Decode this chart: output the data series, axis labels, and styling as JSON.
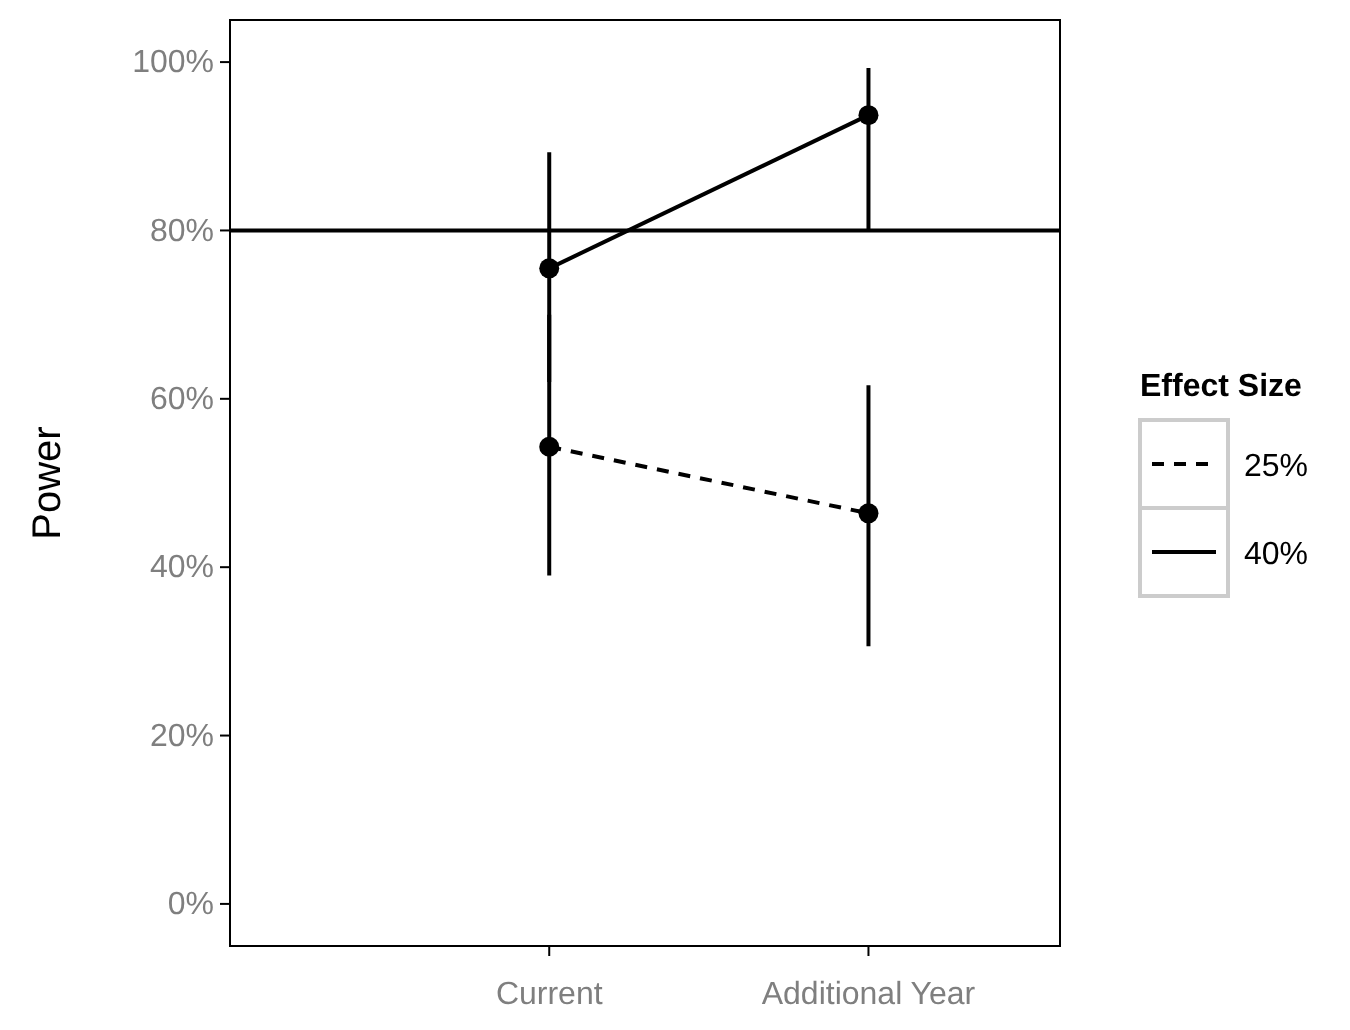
{
  "chart_data": {
    "type": "line",
    "ylabel": "Power",
    "legend_title": "Effect Size",
    "categories": [
      "Current",
      "Additional Year"
    ],
    "series": [
      {
        "name": "25%",
        "color": "#000000",
        "line_style": "dashed",
        "values": [
          54.3,
          46.4
        ],
        "errors": [
          [
            39,
            70
          ],
          [
            30.6,
            61.6
          ]
        ]
      },
      {
        "name": "40%",
        "color": "#000000",
        "line_style": "solid",
        "values": [
          75.5,
          93.7
        ],
        "errors": [
          [
            62,
            89.3
          ],
          [
            80,
            99.3
          ]
        ]
      }
    ],
    "ylim": [
      -5,
      105
    ],
    "yticks": [
      {
        "value": 0,
        "label": "0%"
      },
      {
        "value": 20,
        "label": "20%"
      },
      {
        "value": 40,
        "label": "40%"
      },
      {
        "value": 60,
        "label": "60%"
      },
      {
        "value": 80,
        "label": "80%"
      },
      {
        "value": 100,
        "label": "100%"
      }
    ],
    "ref_lines": [
      {
        "axis": "y",
        "value": 80,
        "color": "#000000",
        "line_style": "solid"
      }
    ],
    "marker": "circle",
    "grid": false,
    "legend": "right"
  }
}
